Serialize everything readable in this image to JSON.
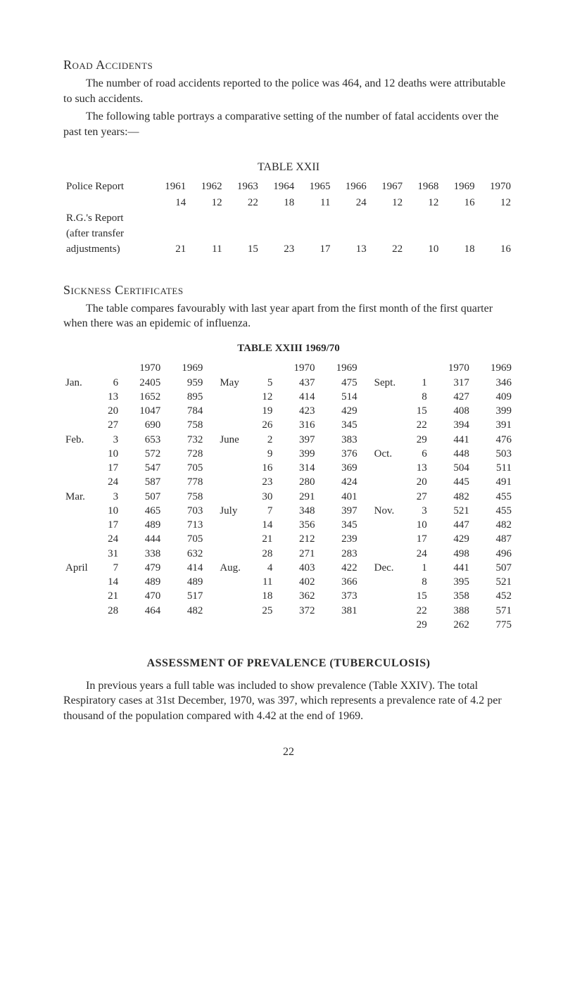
{
  "road": {
    "heading": "Road Accidents",
    "p1": "The number of road accidents reported to the police was 464, and 12 deaths were attributable to such accidents.",
    "p2": "The following table portrays a comparative setting of the number of fatal accidents over the past ten years:—",
    "table22": {
      "title": "TABLE XXII",
      "labels": {
        "police": "Police Report",
        "rg1": "R.G.'s Report",
        "rg2": "(after transfer",
        "rg3": "adjustments)"
      },
      "years": [
        "1961",
        "1962",
        "1963",
        "1964",
        "1965",
        "1966",
        "1967",
        "1968",
        "1969",
        "1970"
      ],
      "police_vals": [
        "14",
        "12",
        "22",
        "18",
        "11",
        "24",
        "12",
        "12",
        "16",
        "12"
      ],
      "rg_vals": [
        "21",
        "11",
        "15",
        "23",
        "17",
        "13",
        "22",
        "10",
        "18",
        "16"
      ]
    }
  },
  "sickness": {
    "heading": "Sickness Certificates",
    "para": "The table compares favourably with last year apart from the first month of the first quarter when there was an epidemic of influenza.",
    "table23": {
      "title": "TABLE XXIII 1969/70",
      "headers": [
        "1970",
        "1969"
      ],
      "col1": [
        [
          "Jan.",
          "6",
          "2405",
          "959"
        ],
        [
          "",
          "13",
          "1652",
          "895"
        ],
        [
          "",
          "20",
          "1047",
          "784"
        ],
        [
          "",
          "27",
          "690",
          "758"
        ],
        [
          "Feb.",
          "3",
          "653",
          "732"
        ],
        [
          "",
          "10",
          "572",
          "728"
        ],
        [
          "",
          "17",
          "547",
          "705"
        ],
        [
          "",
          "24",
          "587",
          "778"
        ],
        [
          "Mar.",
          "3",
          "507",
          "758"
        ],
        [
          "",
          "10",
          "465",
          "703"
        ],
        [
          "",
          "17",
          "489",
          "713"
        ],
        [
          "",
          "24",
          "444",
          "705"
        ],
        [
          "",
          "31",
          "338",
          "632"
        ],
        [
          "April",
          "7",
          "479",
          "414"
        ],
        [
          "",
          "14",
          "489",
          "489"
        ],
        [
          "",
          "21",
          "470",
          "517"
        ],
        [
          "",
          "28",
          "464",
          "482"
        ]
      ],
      "col2": [
        [
          "May",
          "5",
          "437",
          "475"
        ],
        [
          "",
          "12",
          "414",
          "514"
        ],
        [
          "",
          "19",
          "423",
          "429"
        ],
        [
          "",
          "26",
          "316",
          "345"
        ],
        [
          "June",
          "2",
          "397",
          "383"
        ],
        [
          "",
          "9",
          "399",
          "376"
        ],
        [
          "",
          "16",
          "314",
          "369"
        ],
        [
          "",
          "23",
          "280",
          "424"
        ],
        [
          "",
          "30",
          "291",
          "401"
        ],
        [
          "July",
          "7",
          "348",
          "397"
        ],
        [
          "",
          "14",
          "356",
          "345"
        ],
        [
          "",
          "21",
          "212",
          "239"
        ],
        [
          "",
          "28",
          "271",
          "283"
        ],
        [
          "Aug.",
          "4",
          "403",
          "422"
        ],
        [
          "",
          "11",
          "402",
          "366"
        ],
        [
          "",
          "18",
          "362",
          "373"
        ],
        [
          "",
          "25",
          "372",
          "381"
        ]
      ],
      "col3": [
        [
          "Sept.",
          "1",
          "317",
          "346"
        ],
        [
          "",
          "8",
          "427",
          "409"
        ],
        [
          "",
          "15",
          "408",
          "399"
        ],
        [
          "",
          "22",
          "394",
          "391"
        ],
        [
          "",
          "29",
          "441",
          "476"
        ],
        [
          "Oct.",
          "6",
          "448",
          "503"
        ],
        [
          "",
          "13",
          "504",
          "511"
        ],
        [
          "",
          "20",
          "445",
          "491"
        ],
        [
          "",
          "27",
          "482",
          "455"
        ],
        [
          "Nov.",
          "3",
          "521",
          "455"
        ],
        [
          "",
          "10",
          "447",
          "482"
        ],
        [
          "",
          "17",
          "429",
          "487"
        ],
        [
          "",
          "24",
          "498",
          "496"
        ],
        [
          "Dec.",
          "1",
          "441",
          "507"
        ],
        [
          "",
          "8",
          "395",
          "521"
        ],
        [
          "",
          "15",
          "358",
          "452"
        ],
        [
          "",
          "22",
          "388",
          "571"
        ],
        [
          "",
          "29",
          "262",
          "775"
        ]
      ]
    }
  },
  "assess": {
    "heading": "ASSESSMENT OF PREVALENCE (TUBERCULOSIS)",
    "para": "In previous years a full table was included to show prevalence (Table XXIV). The total Respiratory cases at 31st December, 1970, was 397, which represents a prevalence rate of 4.2 per thousand of the population compared with 4.42 at the end of 1969."
  },
  "page": "22"
}
